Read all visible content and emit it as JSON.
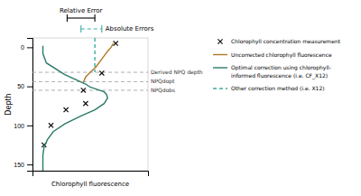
{
  "chart_data": {
    "type": "line",
    "xlabel": "Chlorophyll fluorescence",
    "ylabel": "Depth",
    "xlim": [
      0.0,
      1.0
    ],
    "xticks": [],
    "ylim": [
      158,
      -12
    ],
    "yticks": [
      0,
      50,
      100,
      150
    ],
    "tick_labels": "y",
    "grid": false,
    "series": [
      {
        "name": "Chlorophyll concentration measurement",
        "type": "scatter",
        "marker": "x",
        "color": "#111111",
        "x": [
          0.72,
          0.6,
          0.44,
          0.29,
          0.16,
          0.1,
          0.46
        ],
        "values": [
          -5,
          33,
          55,
          80,
          100,
          125,
          72
        ]
      },
      {
        "name": "Uncorrected chlorophyll fluorescence",
        "type": "line",
        "line_style": "solid",
        "color": "#b07828",
        "x": [
          0.7,
          0.68,
          0.65,
          0.6,
          0.55,
          0.5,
          0.46,
          0.44
        ],
        "values": [
          -5,
          0,
          5,
          15,
          25,
          32,
          38,
          45
        ]
      },
      {
        "name": "Optimal correction using chlorophyll-\ninformed fluorescence (i.e. CF_X12)",
        "type": "line",
        "line_style": "solid",
        "color": "#2a7a6a",
        "x": [
          0.09,
          0.09,
          0.09,
          0.1,
          0.13,
          0.18,
          0.28,
          0.42,
          0.54,
          0.62,
          0.65,
          0.64,
          0.62,
          0.58,
          0.54,
          0.5,
          0.48,
          0.46,
          0.43,
          0.28,
          0.12,
          0.09,
          0.09
        ],
        "values": [
          158,
          148,
          138,
          128,
          118,
          108,
          98,
          88,
          80,
          72,
          65,
          60,
          57,
          55,
          53,
          51,
          49,
          47,
          45,
          35,
          20,
          8,
          -2
        ]
      },
      {
        "name": "Other correction method (i.e. X12)",
        "type": "line",
        "line_style": "dashed",
        "color": "#3aada0",
        "x": [
          0.54,
          0.54
        ],
        "values": [
          -12,
          32
        ]
      }
    ],
    "annotations": [
      {
        "text": "Derived NPQ depth",
        "y": 32,
        "line_style": "dashed",
        "color": "#999999"
      },
      {
        "text": "NPQdopt",
        "y": 44,
        "line_style": "dashed",
        "color": "#999999"
      },
      {
        "text": "NPQdobs",
        "y": 55,
        "line_style": "dashed",
        "color": "#999999"
      },
      {
        "text": "Relative Error",
        "x": [
          0.3,
          0.54
        ],
        "line_style": "solid",
        "color": "#000000"
      },
      {
        "text": "Absolute Errors",
        "x": [
          0.42,
          0.6
        ],
        "line_style": "dashed",
        "color": "#3aada0"
      }
    ],
    "legend": "right"
  }
}
